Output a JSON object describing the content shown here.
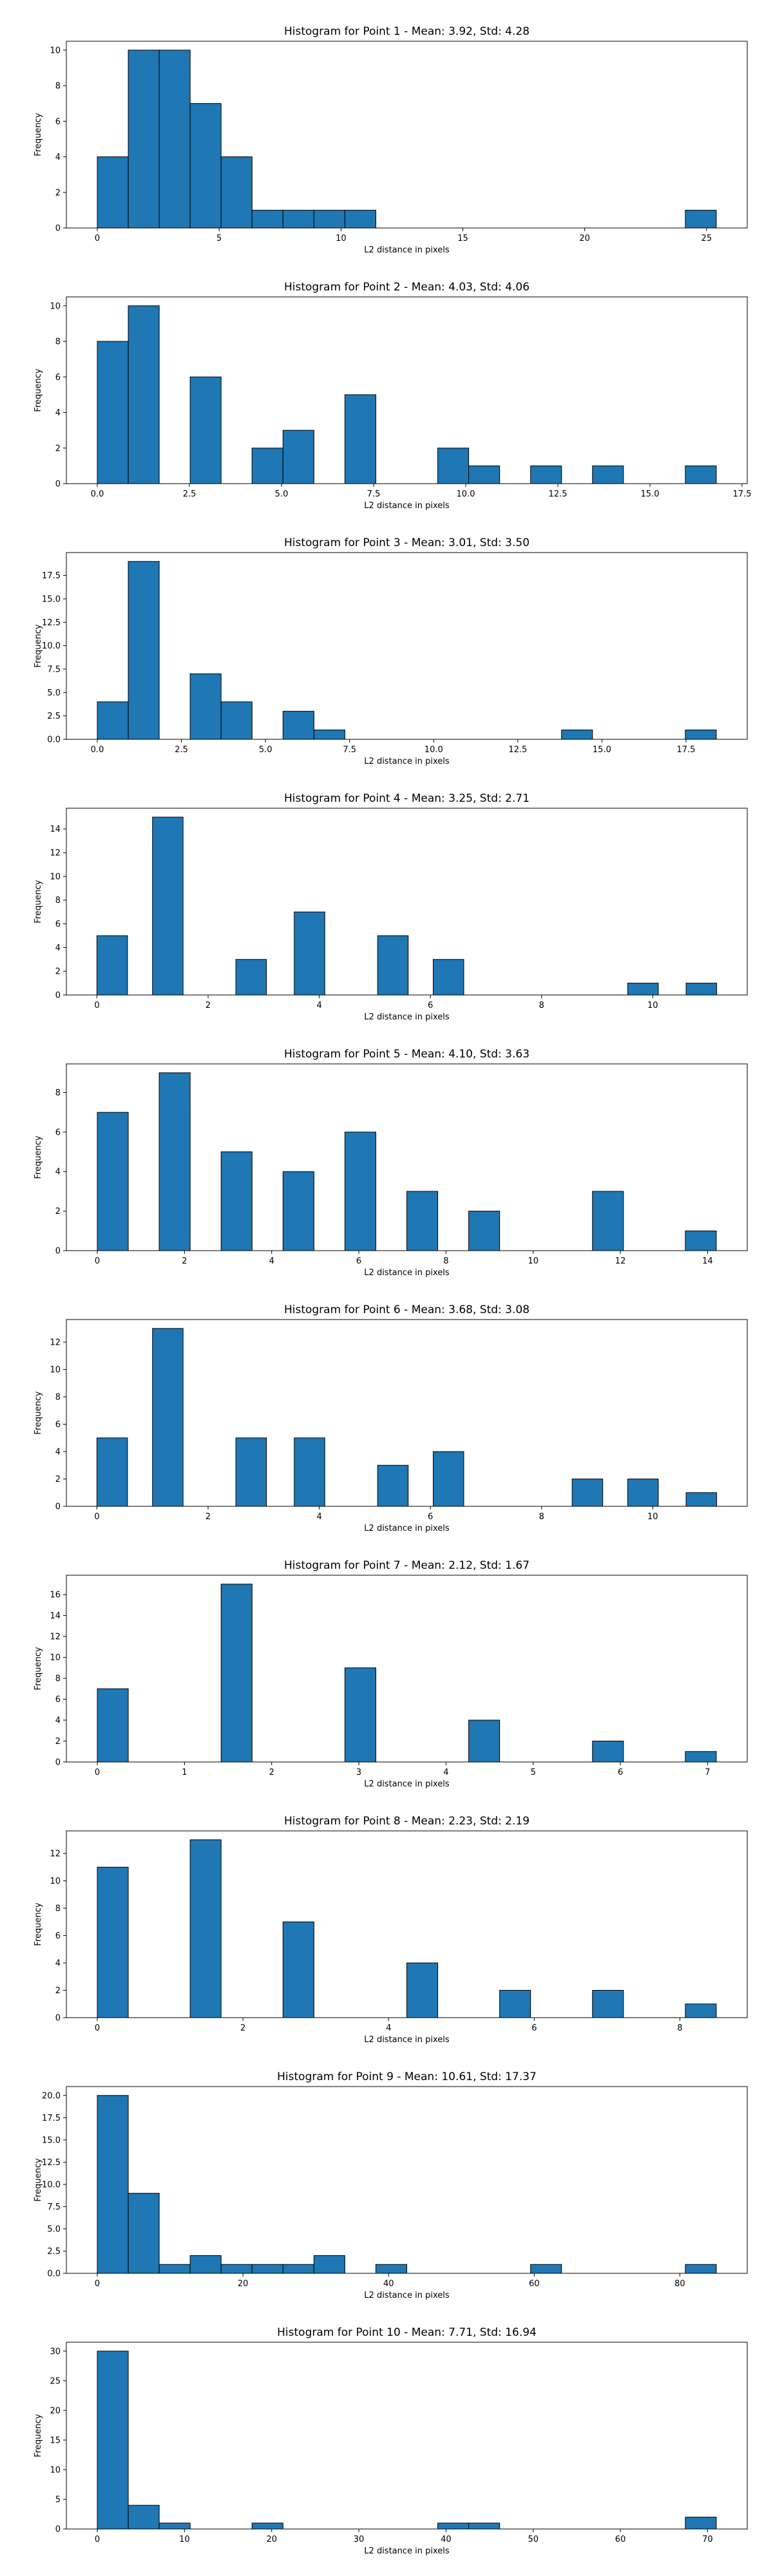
{
  "colors": {
    "bar_fill": "#1f77b4",
    "bar_edge": "#000000"
  },
  "chart_data": [
    {
      "type": "bar",
      "title": "Histogram for Point 1 - Mean: 3.92, Std: 4.28",
      "xlabel": "L2 distance in pixels",
      "ylabel": "Frequency",
      "bins": [
        [
          0,
          1.27,
          4
        ],
        [
          1.27,
          2.54,
          10
        ],
        [
          2.54,
          3.81,
          10
        ],
        [
          3.81,
          5.08,
          7
        ],
        [
          5.08,
          6.35,
          4
        ],
        [
          6.35,
          7.62,
          1
        ],
        [
          7.62,
          8.89,
          1
        ],
        [
          8.89,
          10.16,
          1
        ],
        [
          10.16,
          11.43,
          1
        ],
        [
          24.13,
          25.4,
          1
        ]
      ],
      "xlim": [
        -1.27,
        26.67
      ],
      "ylim": [
        0,
        10.5
      ],
      "xticks": [
        {
          "v": 0,
          "label": "0"
        },
        {
          "v": 5,
          "label": "5"
        },
        {
          "v": 10,
          "label": "10"
        },
        {
          "v": 15,
          "label": "15"
        },
        {
          "v": 20,
          "label": "20"
        },
        {
          "v": 25,
          "label": "25"
        }
      ],
      "yticks": [
        {
          "v": 0,
          "label": "0"
        },
        {
          "v": 2,
          "label": "2"
        },
        {
          "v": 4,
          "label": "4"
        },
        {
          "v": 6,
          "label": "6"
        },
        {
          "v": 8,
          "label": "8"
        },
        {
          "v": 10,
          "label": "10"
        }
      ]
    },
    {
      "type": "bar",
      "title": "Histogram for Point 2 - Mean: 4.03, Std: 4.06",
      "xlabel": "L2 distance in pixels",
      "ylabel": "Frequency",
      "bins": [
        [
          0,
          0.84,
          8
        ],
        [
          0.84,
          1.68,
          10
        ],
        [
          2.52,
          3.36,
          6
        ],
        [
          4.2,
          5.04,
          2
        ],
        [
          5.04,
          5.88,
          3
        ],
        [
          6.72,
          7.56,
          5
        ],
        [
          9.24,
          10.08,
          2
        ],
        [
          10.08,
          10.92,
          1
        ],
        [
          11.76,
          12.6,
          1
        ],
        [
          13.44,
          14.28,
          1
        ],
        [
          15.96,
          16.8,
          1
        ]
      ],
      "xlim": [
        -0.84,
        17.64
      ],
      "ylim": [
        0,
        10.5
      ],
      "xticks": [
        {
          "v": 0,
          "label": "0.0"
        },
        {
          "v": 2.5,
          "label": "2.5"
        },
        {
          "v": 5,
          "label": "5.0"
        },
        {
          "v": 7.5,
          "label": "7.5"
        },
        {
          "v": 10,
          "label": "10.0"
        },
        {
          "v": 12.5,
          "label": "12.5"
        },
        {
          "v": 15,
          "label": "15.0"
        },
        {
          "v": 17.5,
          "label": "17.5"
        }
      ],
      "yticks": [
        {
          "v": 0,
          "label": "0"
        },
        {
          "v": 2,
          "label": "2"
        },
        {
          "v": 4,
          "label": "4"
        },
        {
          "v": 6,
          "label": "6"
        },
        {
          "v": 8,
          "label": "8"
        },
        {
          "v": 10,
          "label": "10"
        }
      ]
    },
    {
      "type": "bar",
      "title": "Histogram for Point 3 - Mean: 3.01, Std: 3.50",
      "xlabel": "L2 distance in pixels",
      "ylabel": "Frequency",
      "bins": [
        [
          0,
          0.92,
          4
        ],
        [
          0.92,
          1.84,
          19
        ],
        [
          2.76,
          3.68,
          7
        ],
        [
          3.68,
          4.6,
          4
        ],
        [
          5.52,
          6.44,
          3
        ],
        [
          6.44,
          7.36,
          1
        ],
        [
          13.8,
          14.72,
          1
        ],
        [
          17.48,
          18.4,
          1
        ]
      ],
      "xlim": [
        -0.92,
        19.32
      ],
      "ylim": [
        0,
        19.95
      ],
      "xticks": [
        {
          "v": 0,
          "label": "0.0"
        },
        {
          "v": 2.5,
          "label": "2.5"
        },
        {
          "v": 5,
          "label": "5.0"
        },
        {
          "v": 7.5,
          "label": "7.5"
        },
        {
          "v": 10,
          "label": "10.0"
        },
        {
          "v": 12.5,
          "label": "12.5"
        },
        {
          "v": 15,
          "label": "15.0"
        },
        {
          "v": 17.5,
          "label": "17.5"
        }
      ],
      "yticks": [
        {
          "v": 0,
          "label": "0.0"
        },
        {
          "v": 2.5,
          "label": "2.5"
        },
        {
          "v": 5,
          "label": "5.0"
        },
        {
          "v": 7.5,
          "label": "7.5"
        },
        {
          "v": 10,
          "label": "10.0"
        },
        {
          "v": 12.5,
          "label": "12.5"
        },
        {
          "v": 15,
          "label": "15.0"
        },
        {
          "v": 17.5,
          "label": "17.5"
        }
      ]
    },
    {
      "type": "bar",
      "title": "Histogram for Point 4 - Mean: 3.25, Std: 2.71",
      "xlabel": "L2 distance in pixels",
      "ylabel": "Frequency",
      "bins": [
        [
          0,
          0.55,
          5
        ],
        [
          1,
          1.55,
          15
        ],
        [
          2.5,
          3.05,
          3
        ],
        [
          3.55,
          4.1,
          7
        ],
        [
          5.05,
          5.6,
          5
        ],
        [
          6.05,
          6.6,
          3
        ],
        [
          9.55,
          10.1,
          1
        ],
        [
          10.6,
          11.15,
          1
        ]
      ],
      "xlim": [
        -0.55,
        11.7
      ],
      "ylim": [
        0,
        15.75
      ],
      "xticks": [
        {
          "v": 0,
          "label": "0"
        },
        {
          "v": 2,
          "label": "2"
        },
        {
          "v": 4,
          "label": "4"
        },
        {
          "v": 6,
          "label": "6"
        },
        {
          "v": 8,
          "label": "8"
        },
        {
          "v": 10,
          "label": "10"
        }
      ],
      "yticks": [
        {
          "v": 0,
          "label": "0"
        },
        {
          "v": 2,
          "label": "2"
        },
        {
          "v": 4,
          "label": "4"
        },
        {
          "v": 6,
          "label": "6"
        },
        {
          "v": 8,
          "label": "8"
        },
        {
          "v": 10,
          "label": "10"
        },
        {
          "v": 12,
          "label": "12"
        },
        {
          "v": 14,
          "label": "14"
        }
      ]
    },
    {
      "type": "bar",
      "title": "Histogram for Point 5 - Mean: 4.10, Std: 3.63",
      "xlabel": "L2 distance in pixels",
      "ylabel": "Frequency",
      "bins": [
        [
          0,
          0.71,
          7
        ],
        [
          1.42,
          2.13,
          9
        ],
        [
          2.84,
          3.55,
          5
        ],
        [
          4.26,
          4.97,
          4
        ],
        [
          5.68,
          6.39,
          6
        ],
        [
          7.1,
          7.81,
          3
        ],
        [
          8.52,
          9.23,
          2
        ],
        [
          11.36,
          12.07,
          3
        ],
        [
          13.49,
          14.2,
          1
        ]
      ],
      "xlim": [
        -0.71,
        14.91
      ],
      "ylim": [
        0,
        9.45
      ],
      "xticks": [
        {
          "v": 0,
          "label": "0"
        },
        {
          "v": 2,
          "label": "2"
        },
        {
          "v": 4,
          "label": "4"
        },
        {
          "v": 6,
          "label": "6"
        },
        {
          "v": 8,
          "label": "8"
        },
        {
          "v": 10,
          "label": "10"
        },
        {
          "v": 12,
          "label": "12"
        },
        {
          "v": 14,
          "label": "14"
        }
      ],
      "yticks": [
        {
          "v": 0,
          "label": "0"
        },
        {
          "v": 2,
          "label": "2"
        },
        {
          "v": 4,
          "label": "4"
        },
        {
          "v": 6,
          "label": "6"
        },
        {
          "v": 8,
          "label": "8"
        }
      ]
    },
    {
      "type": "bar",
      "title": "Histogram for Point 6 - Mean: 3.68, Std: 3.08",
      "xlabel": "L2 distance in pixels",
      "ylabel": "Frequency",
      "bins": [
        [
          0,
          0.55,
          5
        ],
        [
          1,
          1.55,
          13
        ],
        [
          2.5,
          3.05,
          5
        ],
        [
          3.55,
          4.1,
          5
        ],
        [
          5.05,
          5.6,
          3
        ],
        [
          6.05,
          6.6,
          4
        ],
        [
          8.55,
          9.1,
          2
        ],
        [
          9.55,
          10.1,
          2
        ],
        [
          10.6,
          11.15,
          1
        ]
      ],
      "xlim": [
        -0.55,
        11.7
      ],
      "ylim": [
        0,
        13.65
      ],
      "xticks": [
        {
          "v": 0,
          "label": "0"
        },
        {
          "v": 2,
          "label": "2"
        },
        {
          "v": 4,
          "label": "4"
        },
        {
          "v": 6,
          "label": "6"
        },
        {
          "v": 8,
          "label": "8"
        },
        {
          "v": 10,
          "label": "10"
        }
      ],
      "yticks": [
        {
          "v": 0,
          "label": "0"
        },
        {
          "v": 2,
          "label": "2"
        },
        {
          "v": 4,
          "label": "4"
        },
        {
          "v": 6,
          "label": "6"
        },
        {
          "v": 8,
          "label": "8"
        },
        {
          "v": 10,
          "label": "10"
        },
        {
          "v": 12,
          "label": "12"
        }
      ]
    },
    {
      "type": "bar",
      "title": "Histogram for Point 7 - Mean: 2.12, Std: 1.67",
      "xlabel": "L2 distance in pixels",
      "ylabel": "Frequency",
      "bins": [
        [
          0,
          0.355,
          7
        ],
        [
          1.42,
          1.775,
          17
        ],
        [
          2.84,
          3.195,
          9
        ],
        [
          4.26,
          4.615,
          4
        ],
        [
          5.68,
          6.035,
          2
        ],
        [
          6.745,
          7.1,
          1
        ]
      ],
      "xlim": [
        -0.355,
        7.455
      ],
      "ylim": [
        0,
        17.85
      ],
      "xticks": [
        {
          "v": 0,
          "label": "0"
        },
        {
          "v": 1,
          "label": "1"
        },
        {
          "v": 2,
          "label": "2"
        },
        {
          "v": 3,
          "label": "3"
        },
        {
          "v": 4,
          "label": "4"
        },
        {
          "v": 5,
          "label": "5"
        },
        {
          "v": 6,
          "label": "6"
        },
        {
          "v": 7,
          "label": "7"
        }
      ],
      "yticks": [
        {
          "v": 0,
          "label": "0"
        },
        {
          "v": 2,
          "label": "2"
        },
        {
          "v": 4,
          "label": "4"
        },
        {
          "v": 6,
          "label": "6"
        },
        {
          "v": 8,
          "label": "8"
        },
        {
          "v": 10,
          "label": "10"
        },
        {
          "v": 12,
          "label": "12"
        },
        {
          "v": 14,
          "label": "14"
        },
        {
          "v": 16,
          "label": "16"
        }
      ]
    },
    {
      "type": "bar",
      "title": "Histogram for Point 8 - Mean: 2.23, Std: 2.19",
      "xlabel": "L2 distance in pixels",
      "ylabel": "Frequency",
      "bins": [
        [
          0,
          0.425,
          11
        ],
        [
          1.275,
          1.7,
          13
        ],
        [
          2.55,
          2.975,
          7
        ],
        [
          4.25,
          4.675,
          4
        ],
        [
          5.525,
          5.95,
          2
        ],
        [
          6.8,
          7.225,
          2
        ],
        [
          8.075,
          8.5,
          1
        ]
      ],
      "xlim": [
        -0.425,
        8.925
      ],
      "ylim": [
        0,
        13.65
      ],
      "xticks": [
        {
          "v": 0,
          "label": "0"
        },
        {
          "v": 2,
          "label": "2"
        },
        {
          "v": 4,
          "label": "4"
        },
        {
          "v": 6,
          "label": "6"
        },
        {
          "v": 8,
          "label": "8"
        }
      ],
      "yticks": [
        {
          "v": 0,
          "label": "0"
        },
        {
          "v": 2,
          "label": "2"
        },
        {
          "v": 4,
          "label": "4"
        },
        {
          "v": 6,
          "label": "6"
        },
        {
          "v": 8,
          "label": "8"
        },
        {
          "v": 10,
          "label": "10"
        },
        {
          "v": 12,
          "label": "12"
        }
      ]
    },
    {
      "type": "bar",
      "title": "Histogram for Point 9 - Mean: 10.61, Std: 17.37",
      "xlabel": "L2 distance in pixels",
      "ylabel": "Frequency",
      "bins": [
        [
          0,
          4.25,
          20
        ],
        [
          4.25,
          8.5,
          9
        ],
        [
          8.5,
          12.75,
          1
        ],
        [
          12.75,
          17,
          2
        ],
        [
          17,
          21.25,
          1
        ],
        [
          21.25,
          25.5,
          1
        ],
        [
          25.5,
          29.75,
          1
        ],
        [
          29.75,
          34,
          2
        ],
        [
          38.25,
          42.5,
          1
        ],
        [
          59.5,
          63.75,
          1
        ],
        [
          80.75,
          85,
          1
        ]
      ],
      "xlim": [
        -4.25,
        89.25
      ],
      "ylim": [
        0,
        21
      ],
      "xticks": [
        {
          "v": 0,
          "label": "0"
        },
        {
          "v": 20,
          "label": "20"
        },
        {
          "v": 40,
          "label": "40"
        },
        {
          "v": 60,
          "label": "60"
        },
        {
          "v": 80,
          "label": "80"
        }
      ],
      "yticks": [
        {
          "v": 0,
          "label": "0.0"
        },
        {
          "v": 2.5,
          "label": "2.5"
        },
        {
          "v": 5,
          "label": "5.0"
        },
        {
          "v": 7.5,
          "label": "7.5"
        },
        {
          "v": 10,
          "label": "10.0"
        },
        {
          "v": 12.5,
          "label": "12.5"
        },
        {
          "v": 15,
          "label": "15.0"
        },
        {
          "v": 17.5,
          "label": "17.5"
        },
        {
          "v": 20,
          "label": "20.0"
        }
      ]
    },
    {
      "type": "bar",
      "title": "Histogram for Point 10 - Mean: 7.71, Std: 16.94",
      "xlabel": "L2 distance in pixels",
      "ylabel": "Frequency",
      "bins": [
        [
          0,
          3.55,
          30
        ],
        [
          3.55,
          7.1,
          4
        ],
        [
          7.1,
          10.65,
          1
        ],
        [
          17.75,
          21.3,
          1
        ],
        [
          39.05,
          42.6,
          1
        ],
        [
          42.6,
          46.15,
          1
        ],
        [
          67.45,
          71,
          2
        ]
      ],
      "xlim": [
        -3.55,
        74.55
      ],
      "ylim": [
        0,
        31.5
      ],
      "xticks": [
        {
          "v": 0,
          "label": "0"
        },
        {
          "v": 10,
          "label": "10"
        },
        {
          "v": 20,
          "label": "20"
        },
        {
          "v": 30,
          "label": "30"
        },
        {
          "v": 40,
          "label": "40"
        },
        {
          "v": 50,
          "label": "50"
        },
        {
          "v": 60,
          "label": "60"
        },
        {
          "v": 70,
          "label": "70"
        }
      ],
      "yticks": [
        {
          "v": 0,
          "label": "0"
        },
        {
          "v": 5,
          "label": "5"
        },
        {
          "v": 10,
          "label": "10"
        },
        {
          "v": 15,
          "label": "15"
        },
        {
          "v": 20,
          "label": "20"
        },
        {
          "v": 25,
          "label": "25"
        },
        {
          "v": 30,
          "label": "30"
        }
      ]
    }
  ]
}
